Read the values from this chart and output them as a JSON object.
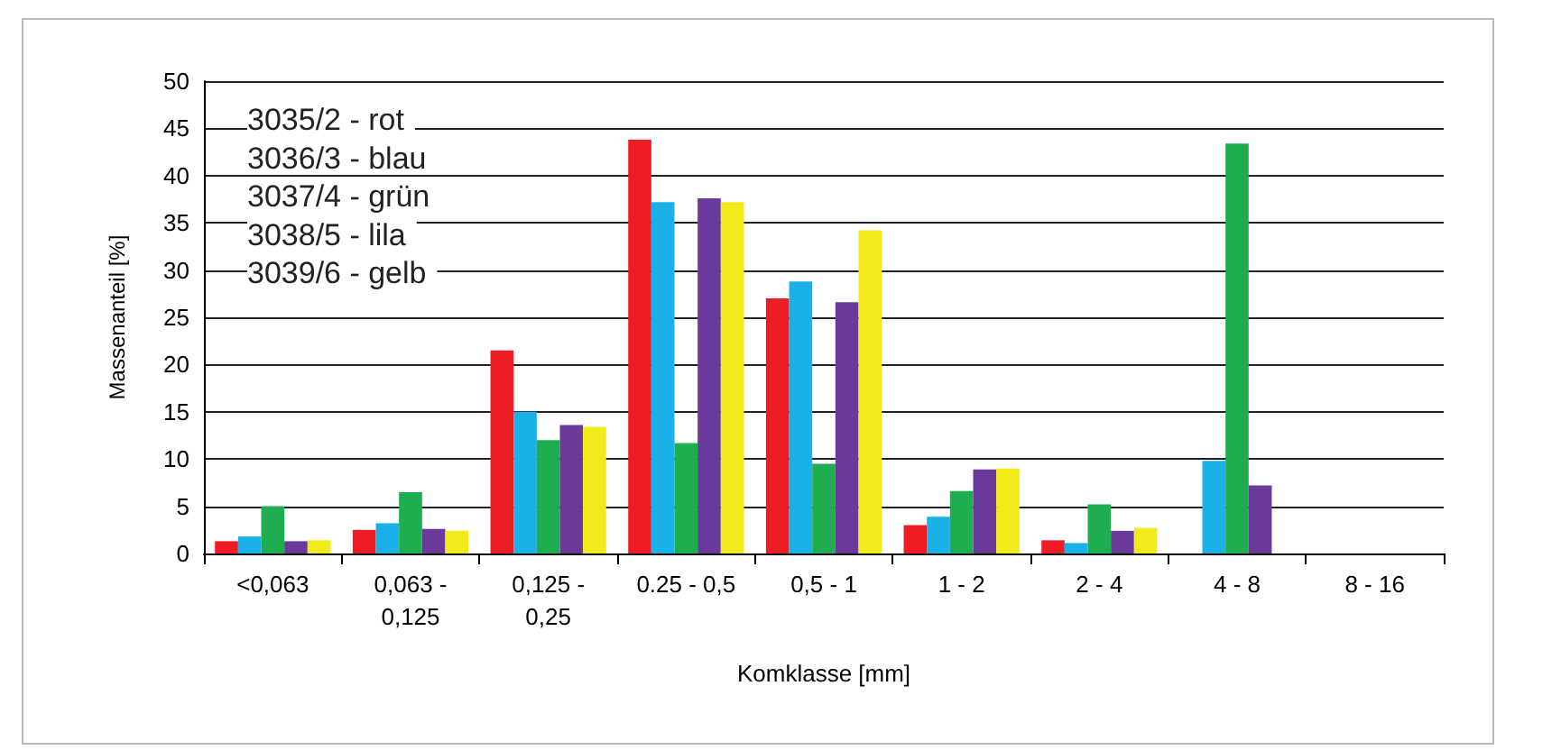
{
  "chart_data": {
    "type": "bar",
    "categories": [
      "<0,063",
      "0,063 -\n0,125",
      "0,125 -\n0,25",
      "0.25 - 0,5",
      "0,5 - 1",
      "1 - 2",
      "2 - 4",
      "4 - 8",
      "8 - 16"
    ],
    "series": [
      {
        "color": "#ee1c25",
        "values": [
          1.3,
          2.5,
          21.5,
          43.8,
          27,
          3,
          1.4,
          0,
          0
        ]
      },
      {
        "color": "#1ab0e8",
        "values": [
          1.8,
          3.2,
          15,
          37.2,
          28.8,
          3.9,
          1.1,
          9.8,
          0
        ]
      },
      {
        "color": "#1fae4f",
        "values": [
          5,
          6.5,
          12,
          11.7,
          9.5,
          6.6,
          5.2,
          43.4,
          0
        ]
      },
      {
        "color": "#6a3a9a",
        "values": [
          1.3,
          2.6,
          13.6,
          37.6,
          26.6,
          8.9,
          2.4,
          7.2,
          0
        ]
      },
      {
        "color": "#f2ea1a",
        "values": [
          1.4,
          2.4,
          13.4,
          37.2,
          34.2,
          9,
          2.7,
          0,
          0
        ]
      }
    ],
    "xlabel": "Komklasse [mm]",
    "ylabel": "Massenanteil [%]",
    "ylim": [
      0,
      50
    ],
    "yticks": [
      0,
      5,
      10,
      15,
      20,
      25,
      30,
      35,
      40,
      45,
      50
    ],
    "grid": "y",
    "annotations": [
      "3035/2 - rot",
      "3036/3 - blau",
      "3037/4 - grün",
      "3038/5 - lila",
      "3039/6 - gelb"
    ]
  }
}
